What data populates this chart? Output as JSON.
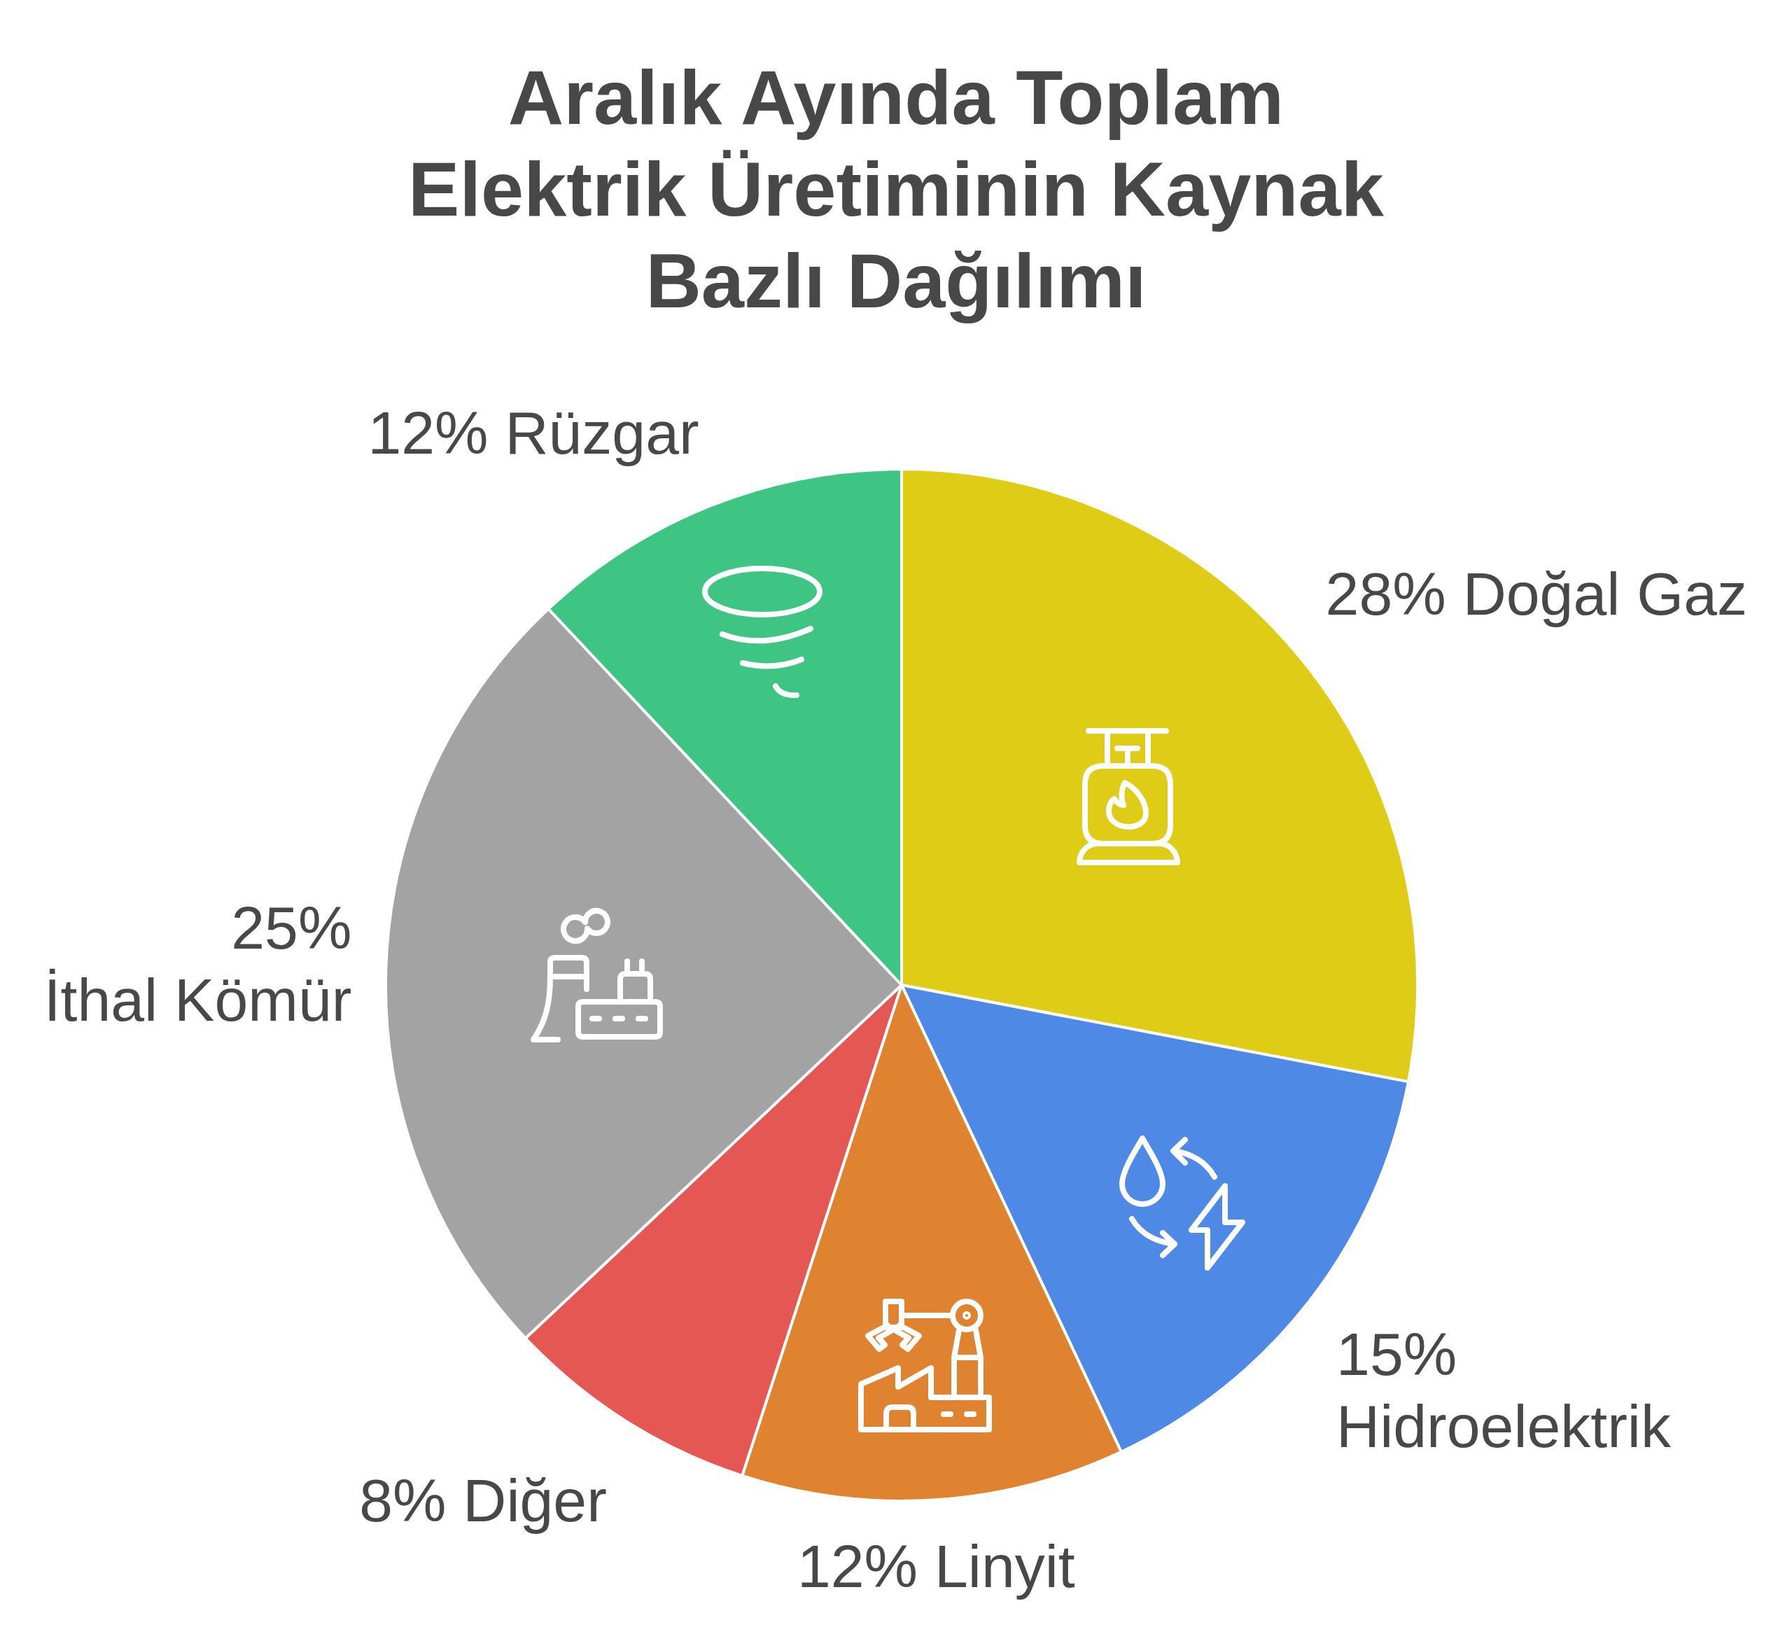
{
  "chart_data": {
    "type": "pie",
    "title": "Aralık Ayında Toplam Elektrik Üretiminin Kaynak Bazlı Dağılımı",
    "categories": [
      "Doğal Gaz",
      "Hidroelektrik",
      "Linyit",
      "Diğer",
      "İthal Kömür",
      "Rüzgar"
    ],
    "values": [
      28,
      15,
      12,
      8,
      25,
      12
    ],
    "colors": [
      "#dfcc16",
      "#4f89e6",
      "#df8330",
      "#e45752",
      "#a3a3a3",
      "#3fc583"
    ],
    "value_labels": [
      "28%",
      "15%",
      "12%",
      "8%",
      "25%",
      "12%"
    ]
  }
}
